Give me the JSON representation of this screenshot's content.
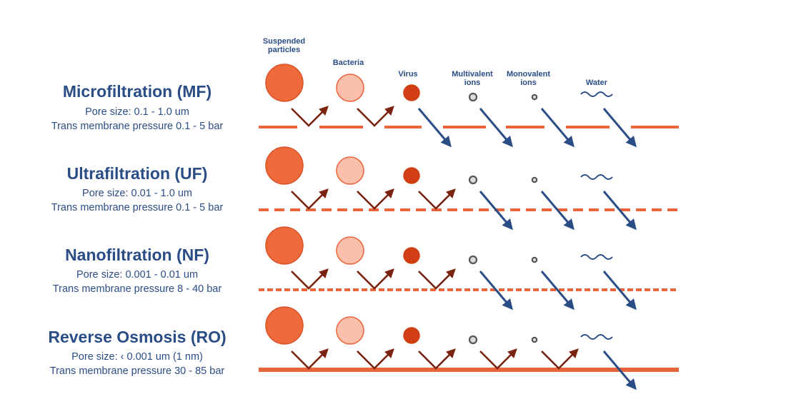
{
  "columns": {
    "suspended": "Suspended\nparticles",
    "bacteria": "Bacteria",
    "virus": "Virus",
    "multivalent": "Multivalent\nions",
    "monovalent": "Monovalent\nions",
    "water": "Water"
  },
  "rows": [
    {
      "title": "Microfiltration (MF)",
      "pore": "Pore size: 0.1 - 1.0 um",
      "pressure": "Trans membrane pressure 0.1 - 5 bar",
      "membrane": "wide-gaps",
      "passes": [
        "virus",
        "multivalent",
        "monovalent",
        "water"
      ]
    },
    {
      "title": "Ultrafiltration (UF)",
      "pore": "Pore size: 0.01 - 1.0 um",
      "pressure": "Trans membrane pressure 0.1 - 5 bar",
      "membrane": "dashed",
      "passes": [
        "multivalent",
        "monovalent",
        "water"
      ]
    },
    {
      "title": "Nanofiltration (NF)",
      "pore": "Pore size: 0.001 - 0.01 um",
      "pressure": "Trans membrane pressure 8 - 40 bar",
      "membrane": "fine-dashed",
      "passes": [
        "multivalent",
        "monovalent",
        "water"
      ]
    },
    {
      "title": "Reverse Osmosis (RO)",
      "pore": "Pore size: ‹ 0.001 um (1 nm)",
      "pressure": "Trans membrane pressure 30 - 85 bar",
      "membrane": "solid",
      "passes": [
        "water"
      ]
    }
  ],
  "colors": {
    "text": "#2b4d85",
    "membrane": "#e8643a",
    "suspended": "#ef6a3b",
    "bacteria": "#f9bfab",
    "virus": "#d23e15",
    "ion": "#888888",
    "reject_arrow": "#7a2410",
    "pass_arrow": "#2b4d85"
  }
}
